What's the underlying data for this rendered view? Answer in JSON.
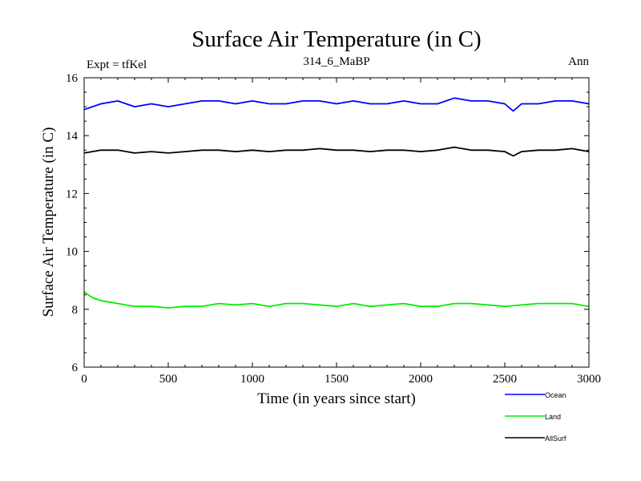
{
  "chart_data": {
    "type": "line",
    "title": "Surface Air Temperature (in C)",
    "subtitle_left": "Expt = tfKel",
    "subtitle_center": "314_6_MaBP",
    "subtitle_right": "Ann",
    "xlabel": "Time (in years since start)",
    "ylabel": "Surface Air Temperature (in C)",
    "xlim": [
      0,
      3000
    ],
    "ylim": [
      6,
      16
    ],
    "xticks": [
      0,
      500,
      1000,
      1500,
      2000,
      2500,
      3000
    ],
    "yticks": [
      6,
      8,
      10,
      12,
      14,
      16
    ],
    "grid": false,
    "legend_position": "below-right",
    "series": [
      {
        "name": "Ocean",
        "color": "#0000ff",
        "x": [
          0,
          100,
          200,
          300,
          400,
          500,
          600,
          700,
          800,
          900,
          1000,
          1100,
          1200,
          1300,
          1400,
          1500,
          1600,
          1700,
          1800,
          1900,
          2000,
          2100,
          2200,
          2300,
          2400,
          2500,
          2550,
          2600,
          2700,
          2800,
          2900,
          3000
        ],
        "values": [
          14.9,
          15.1,
          15.2,
          15.0,
          15.1,
          15.0,
          15.1,
          15.2,
          15.2,
          15.1,
          15.2,
          15.1,
          15.1,
          15.2,
          15.2,
          15.1,
          15.2,
          15.1,
          15.1,
          15.2,
          15.1,
          15.1,
          15.3,
          15.2,
          15.2,
          15.1,
          14.85,
          15.1,
          15.1,
          15.2,
          15.2,
          15.1
        ]
      },
      {
        "name": "Land",
        "color": "#00ee00",
        "x": [
          0,
          50,
          100,
          200,
          300,
          400,
          500,
          600,
          700,
          800,
          900,
          1000,
          1100,
          1200,
          1300,
          1400,
          1500,
          1600,
          1700,
          1800,
          1900,
          2000,
          2100,
          2200,
          2300,
          2400,
          2500,
          2600,
          2700,
          2800,
          2900,
          3000
        ],
        "values": [
          8.6,
          8.4,
          8.3,
          8.2,
          8.1,
          8.1,
          8.05,
          8.1,
          8.1,
          8.2,
          8.15,
          8.2,
          8.1,
          8.2,
          8.2,
          8.15,
          8.1,
          8.2,
          8.1,
          8.15,
          8.2,
          8.1,
          8.1,
          8.2,
          8.2,
          8.15,
          8.1,
          8.15,
          8.2,
          8.2,
          8.2,
          8.1
        ]
      },
      {
        "name": "AllSurf",
        "color": "#000000",
        "x": [
          0,
          100,
          200,
          300,
          400,
          500,
          600,
          700,
          800,
          900,
          1000,
          1100,
          1200,
          1300,
          1400,
          1500,
          1600,
          1700,
          1800,
          1900,
          2000,
          2100,
          2200,
          2300,
          2400,
          2500,
          2550,
          2600,
          2700,
          2800,
          2900,
          3000
        ],
        "values": [
          13.4,
          13.5,
          13.5,
          13.4,
          13.45,
          13.4,
          13.45,
          13.5,
          13.5,
          13.45,
          13.5,
          13.45,
          13.5,
          13.5,
          13.55,
          13.5,
          13.5,
          13.45,
          13.5,
          13.5,
          13.45,
          13.5,
          13.6,
          13.5,
          13.5,
          13.45,
          13.3,
          13.45,
          13.5,
          13.5,
          13.55,
          13.45
        ]
      }
    ]
  }
}
